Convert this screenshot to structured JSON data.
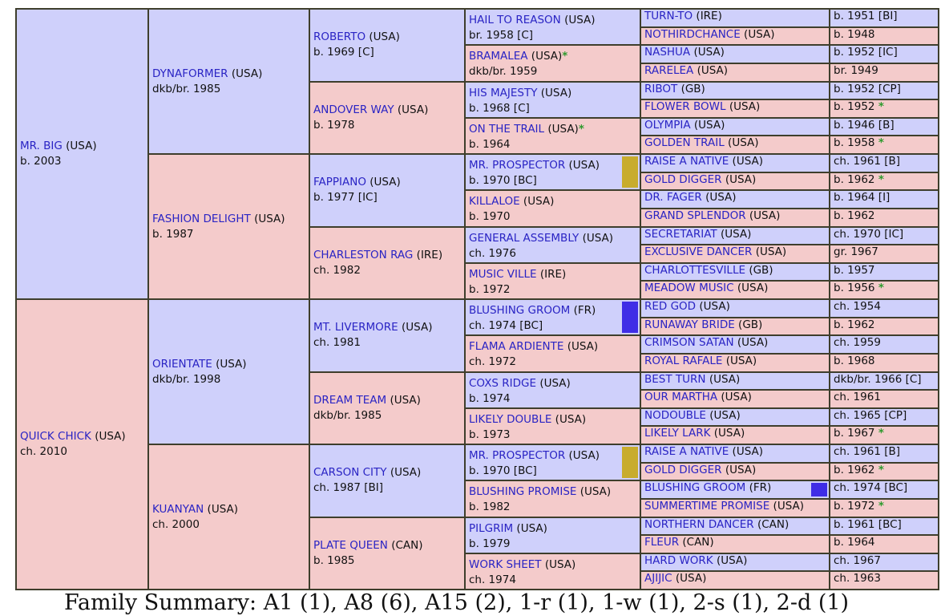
{
  "colors": {
    "male": "#cfd0fb",
    "female": "#f4cbcb",
    "border": "#3e3e2c",
    "name": "#2a24c4",
    "star": "#2e9a2e"
  },
  "subject": {
    "sire": {
      "name": "MR. BIG",
      "country": "(USA)",
      "born": "b. 2003"
    },
    "dam": {
      "name": "QUICK CHICK",
      "country": "(USA)",
      "born": "ch. 2010"
    }
  },
  "gen2": [
    {
      "name": "DYNAFORMER",
      "country": "(USA)",
      "born": "dkb/br. 1985"
    },
    {
      "name": "FASHION DELIGHT",
      "country": "(USA)",
      "born": "b. 1987"
    },
    {
      "name": "ORIENTATE",
      "country": "(USA)",
      "born": "dkb/br. 1998"
    },
    {
      "name": "KUANYAN",
      "country": "(USA)",
      "born": "ch. 2000"
    }
  ],
  "gen3": [
    {
      "name": "ROBERTO",
      "country": "(USA)",
      "born": "b. 1969 [C]"
    },
    {
      "name": "ANDOVER WAY",
      "country": "(USA)",
      "born": "b. 1978"
    },
    {
      "name": "FAPPIANO",
      "country": "(USA)",
      "born": "b. 1977 [IC]"
    },
    {
      "name": "CHARLESTON RAG",
      "country": "(IRE)",
      "born": "ch. 1982"
    },
    {
      "name": "MT. LIVERMORE",
      "country": "(USA)",
      "born": "ch. 1981"
    },
    {
      "name": "DREAM TEAM",
      "country": "(USA)",
      "born": "dkb/br. 1985"
    },
    {
      "name": "CARSON CITY",
      "country": "(USA)",
      "born": "ch. 1987 [BI]"
    },
    {
      "name": "PLATE QUEEN",
      "country": "(CAN)",
      "born": "b. 1985"
    }
  ],
  "gen4": [
    {
      "name": "HAIL TO REASON",
      "country": "(USA)",
      "born": "br. 1958 [C]"
    },
    {
      "name": "BRAMALEA",
      "country": "(USA)",
      "star": "*",
      "born": "dkb/br. 1959"
    },
    {
      "name": "HIS MAJESTY",
      "country": "(USA)",
      "born": "b. 1968 [C]"
    },
    {
      "name": "ON THE TRAIL",
      "country": "(USA)",
      "star": "*",
      "born": "b. 1964"
    },
    {
      "name": "MR. PROSPECTOR",
      "country": "(USA)",
      "born": "b. 1970 [BC]",
      "swatch": "#c8ac2e"
    },
    {
      "name": "KILLALOE",
      "country": "(USA)",
      "born": "b. 1970"
    },
    {
      "name": "GENERAL ASSEMBLY",
      "country": "(USA)",
      "born": "ch. 1976"
    },
    {
      "name": "MUSIC VILLE",
      "country": "(IRE)",
      "born": "b. 1972"
    },
    {
      "name": "BLUSHING GROOM",
      "country": "(FR)",
      "born": "ch. 1974 [BC]",
      "swatch": "#3f2de6"
    },
    {
      "name": "FLAMA ARDIENTE",
      "country": "(USA)",
      "born": "ch. 1972"
    },
    {
      "name": "COXS RIDGE",
      "country": "(USA)",
      "born": "b. 1974"
    },
    {
      "name": "LIKELY DOUBLE",
      "country": "(USA)",
      "born": "b. 1973"
    },
    {
      "name": "MR. PROSPECTOR",
      "country": "(USA)",
      "born": "b. 1970 [BC]",
      "swatch": "#c8ac2e"
    },
    {
      "name": "BLUSHING PROMISE",
      "country": "(USA)",
      "born": "b. 1982"
    },
    {
      "name": "PILGRIM",
      "country": "(USA)",
      "born": "b. 1979"
    },
    {
      "name": "WORK SHEET",
      "country": "(USA)",
      "born": "ch. 1974"
    }
  ],
  "gen5": [
    {
      "name": "TURN-TO",
      "country": "(IRE)",
      "born": "b. 1951 [BI]"
    },
    {
      "name": "NOTHIRDCHANCE",
      "country": "(USA)",
      "born": "b. 1948"
    },
    {
      "name": "NASHUA",
      "country": "(USA)",
      "born": "b. 1952 [IC]"
    },
    {
      "name": "RARELEA",
      "country": "(USA)",
      "born": "br. 1949"
    },
    {
      "name": "RIBOT",
      "country": "(GB)",
      "born": "b. 1952 [CP]"
    },
    {
      "name": "FLOWER BOWL",
      "country": "(USA)",
      "born": "b. 1952",
      "star": "*"
    },
    {
      "name": "OLYMPIA",
      "country": "(USA)",
      "born": "b. 1946 [B]"
    },
    {
      "name": "GOLDEN TRAIL",
      "country": "(USA)",
      "born": "b. 1958",
      "star": "*"
    },
    {
      "name": "RAISE A NATIVE",
      "country": "(USA)",
      "born": "ch. 1961 [B]"
    },
    {
      "name": "GOLD DIGGER",
      "country": "(USA)",
      "born": "b. 1962",
      "star": "*"
    },
    {
      "name": "DR. FAGER",
      "country": "(USA)",
      "born": "b. 1964 [I]"
    },
    {
      "name": "GRAND SPLENDOR",
      "country": "(USA)",
      "born": "b. 1962"
    },
    {
      "name": "SECRETARIAT",
      "country": "(USA)",
      "born": "ch. 1970 [IC]"
    },
    {
      "name": "EXCLUSIVE DANCER",
      "country": "(USA)",
      "born": "gr. 1967"
    },
    {
      "name": "CHARLOTTESVILLE",
      "country": "(GB)",
      "born": "b. 1957"
    },
    {
      "name": "MEADOW MUSIC",
      "country": "(USA)",
      "born": "b. 1956",
      "star": "*"
    },
    {
      "name": "RED GOD",
      "country": "(USA)",
      "born": "ch. 1954"
    },
    {
      "name": "RUNAWAY BRIDE",
      "country": "(GB)",
      "born": "b. 1962"
    },
    {
      "name": "CRIMSON SATAN",
      "country": "(USA)",
      "born": "ch. 1959"
    },
    {
      "name": "ROYAL RAFALE",
      "country": "(USA)",
      "born": "b. 1968"
    },
    {
      "name": "BEST TURN",
      "country": "(USA)",
      "born": "dkb/br. 1966 [C]"
    },
    {
      "name": "OUR MARTHA",
      "country": "(USA)",
      "born": "ch. 1961"
    },
    {
      "name": "NODOUBLE",
      "country": "(USA)",
      "born": "ch. 1965 [CP]"
    },
    {
      "name": "LIKELY LARK",
      "country": "(USA)",
      "born": "b. 1967",
      "star": "*"
    },
    {
      "name": "RAISE A NATIVE",
      "country": "(USA)",
      "born": "ch. 1961 [B]"
    },
    {
      "name": "GOLD DIGGER",
      "country": "(USA)",
      "born": "b. 1962",
      "star": "*"
    },
    {
      "name": "BLUSHING GROOM",
      "country": "(FR)",
      "born": "ch. 1974 [BC]",
      "swatch": "#3f2de6"
    },
    {
      "name": "SUMMERTIME PROMISE",
      "country": "(USA)",
      "born": "b. 1972",
      "star": "*"
    },
    {
      "name": "NORTHERN DANCER",
      "country": "(CAN)",
      "born": "b. 1961 [BC]"
    },
    {
      "name": "FLEUR",
      "country": "(CAN)",
      "born": "b. 1964"
    },
    {
      "name": "HARD WORK",
      "country": "(USA)",
      "born": "ch. 1967"
    },
    {
      "name": "AJIJIC",
      "country": "(USA)",
      "born": "ch. 1963"
    }
  ],
  "family_summary": "Family Summary: A1 (1), A8 (6), A15 (2), 1-r (1), 1-w (1), 2-s (1), 2-d (1)"
}
